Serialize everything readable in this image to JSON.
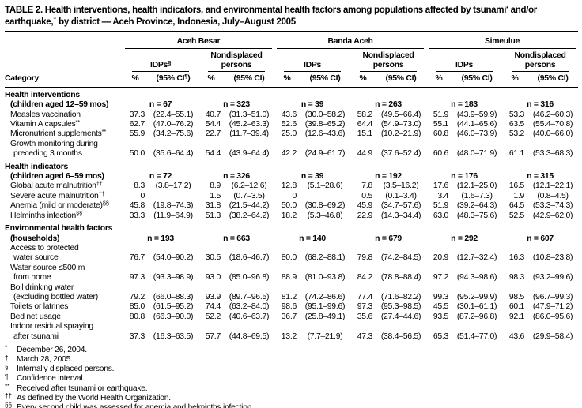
{
  "page": {
    "background": "#ffffff",
    "ink": "#000000"
  },
  "title": "TABLE 2. Health interventions, health indicators, and environmental health factors among populations affected by tsunami^{*} and/or earthquake,^{†} by district — Aceh Province, Indonesia, July–August 2005",
  "table": {
    "category_header": "Category",
    "groups": [
      "Aceh Besar",
      "Banda Aceh",
      "Simeulue"
    ],
    "subgroups": [
      "IDPs^{§}",
      "Nondisplaced persons",
      "IDPs",
      "Nondisplaced persons",
      "IDPs",
      "Nondisplaced persons"
    ],
    "measures": [
      "%",
      "(95% CI^{¶})",
      "%",
      "(95% CI)",
      "%",
      "(95% CI)",
      "%",
      "(95% CI)",
      "%",
      "(95% CI)",
      "%",
      "(95% CI)"
    ],
    "sections": [
      {
        "header": "Health interventions",
        "subheader": "(children aged 12–59 mos)",
        "n": [
          "n = 67",
          "n = 323",
          "n = 39",
          "n = 263",
          "n = 183",
          "n = 316"
        ],
        "rows": [
          {
            "label": [
              "Measles vaccination"
            ],
            "cells": [
              [
                "37.3",
                "(22.4–55.1)"
              ],
              [
                "40.7",
                "(31.3–51.0)"
              ],
              [
                "43.6",
                "(30.0–58.2)"
              ],
              [
                "58.2",
                "(49.5–66.4)"
              ],
              [
                "51.9",
                "(43.9–59.9)"
              ],
              [
                "53.3",
                "(46.2–60.3)"
              ]
            ]
          },
          {
            "label": [
              "Vitamin A capsules^{**}"
            ],
            "cells": [
              [
                "62.7",
                "(47.0–76.2)"
              ],
              [
                "54.4",
                "(45.2–63.3)"
              ],
              [
                "52.6",
                "(39.8–65.2)"
              ],
              [
                "64.4",
                "(54.9–73.0)"
              ],
              [
                "55.1",
                "(44.1–65.6)"
              ],
              [
                "63.5",
                "(55.4–70.8)"
              ]
            ]
          },
          {
            "label": [
              "Micronutrient supplements^{**}"
            ],
            "cells": [
              [
                "55.9",
                "(34.2–75.6)"
              ],
              [
                "22.7",
                "(11.7–39.4)"
              ],
              [
                "25.0",
                "(12.6–43.6)"
              ],
              [
                "15.1",
                "(10.2–21.9)"
              ],
              [
                "60.8",
                "(46.0–73.9)"
              ],
              [
                "53.2",
                "(40.0–66.0)"
              ]
            ]
          },
          {
            "label": [
              "Growth monitoring during",
              "preceding 3 months"
            ],
            "cells": [
              [
                "50.0",
                "(35.6–64.4)"
              ],
              [
                "54.4",
                "(43.9–64.4)"
              ],
              [
                "42.2",
                "(24.9–61.7)"
              ],
              [
                "44.9",
                "(37.6–52.4)"
              ],
              [
                "60.6",
                "(48.0–71.9)"
              ],
              [
                "61.1",
                "(53.3–68.3)"
              ]
            ]
          }
        ]
      },
      {
        "header": "Health indicators",
        "subheader": "(children aged 6–59 mos)",
        "n": [
          "n = 72",
          "n = 326",
          "n = 39",
          "n = 192",
          "n = 176",
          "n = 315"
        ],
        "rows": [
          {
            "label": [
              "Global acute malnutrition^{††}"
            ],
            "cells": [
              [
                "8.3",
                "(3.8–17.2)"
              ],
              [
                "8.9",
                "(6.2–12.6)"
              ],
              [
                "12.8",
                "(5.1–28.6)"
              ],
              [
                "7.8",
                "(3.5–16.2)"
              ],
              [
                "17.6",
                "(12.1–25.0)"
              ],
              [
                "16.5",
                "(12.1–22.1)"
              ]
            ]
          },
          {
            "label": [
              "Severe acute malnutrition^{††}"
            ],
            "cells": [
              [
                "0",
                ""
              ],
              [
                "1.5",
                "(0.7–3.5)"
              ],
              [
                "0",
                ""
              ],
              [
                "0.5",
                "(0.1–3.4)"
              ],
              [
                "3.4",
                "(1.6–7.3)"
              ],
              [
                "1.9",
                "(0.8–4.5)"
              ]
            ]
          },
          {
            "label": [
              "Anemia (mild or moderate)^{§§}"
            ],
            "cells": [
              [
                "45.8",
                "(19.8–74.3)"
              ],
              [
                "31.8",
                "(21.5–44.2)"
              ],
              [
                "50.0",
                "(30.8–69.2)"
              ],
              [
                "45.9",
                "(34.7–57.6)"
              ],
              [
                "51.9",
                "(39.2–64.3)"
              ],
              [
                "64.5",
                "(53.3–74.3)"
              ]
            ]
          },
          {
            "label": [
              "Helminths infection^{§§}"
            ],
            "cells": [
              [
                "33.3",
                "(11.9–64.9)"
              ],
              [
                "51.3",
                "(38.2–64.2)"
              ],
              [
                "18.2",
                "(5.3–46.8)"
              ],
              [
                "22.9",
                "(14.3–34.4)"
              ],
              [
                "63.0",
                "(48.3–75.6)"
              ],
              [
                "52.5",
                "(42.9–62.0)"
              ]
            ]
          }
        ]
      },
      {
        "header": "Environmental health factors",
        "subheader": "(households)",
        "n": [
          "n = 193",
          "n = 663",
          "n = 140",
          "n = 679",
          "n = 292",
          "n = 607"
        ],
        "rows": [
          {
            "label": [
              "Access to protected",
              "water source"
            ],
            "cells": [
              [
                "76.7",
                "(54.0–90.2)"
              ],
              [
                "30.5",
                "(18.6–46.7)"
              ],
              [
                "80.0",
                "(68.2–88.1)"
              ],
              [
                "79.8",
                "(74.2–84.5)"
              ],
              [
                "20.9",
                "(12.7–32.4)"
              ],
              [
                "16.3",
                "(10.8–23.8)"
              ]
            ]
          },
          {
            "label": [
              "Water source ≤500 m",
              "from home"
            ],
            "cells": [
              [
                "97.3",
                "(93.3–98.9)"
              ],
              [
                "93.0",
                "(85.0–96.8)"
              ],
              [
                "88.9",
                "(81.0–93.8)"
              ],
              [
                "84.2",
                "(78.8–88.4)"
              ],
              [
                "97.2",
                "(94.3–98.6)"
              ],
              [
                "98.3",
                "(93.2–99.6)"
              ]
            ]
          },
          {
            "label": [
              "Boil drinking water",
              "(excluding bottled water)"
            ],
            "cells": [
              [
                "79.2",
                "(66.0–88.3)"
              ],
              [
                "93.9",
                "(89.7–96.5)"
              ],
              [
                "81.2",
                "(74.2–86.6)"
              ],
              [
                "77.4",
                "(71.6–82.2)"
              ],
              [
                "99.3",
                "(95.2–99.9)"
              ],
              [
                "98.5",
                "(96.7–99.3)"
              ]
            ]
          },
          {
            "label": [
              "Toilets or latrines"
            ],
            "cells": [
              [
                "85.0",
                "(61.5–95.2)"
              ],
              [
                "74.4",
                "(63.2–84.0)"
              ],
              [
                "98.6",
                "(95.1–99.6)"
              ],
              [
                "97.3",
                "(95.3–98.5)"
              ],
              [
                "45.5",
                "(30.1–61.1)"
              ],
              [
                "60.1",
                "(47.9–71.2)"
              ]
            ]
          },
          {
            "label": [
              "Bed net usage"
            ],
            "cells": [
              [
                "80.8",
                "(66.3–90.0)"
              ],
              [
                "52.2",
                "(40.6–63.7)"
              ],
              [
                "36.7",
                "(25.8–49.1)"
              ],
              [
                "35.6",
                "(27.4–44.6)"
              ],
              [
                "93.5",
                "(87.2–96.8)"
              ],
              [
                "92.1",
                "(86.0–95.6)"
              ]
            ]
          },
          {
            "label": [
              "Indoor residual spraying",
              "after tsunami"
            ],
            "cells": [
              [
                "37.3",
                "(16.3–63.5)"
              ],
              [
                "57.7",
                "(44.8–69.5)"
              ],
              [
                "13.2",
                "(7.7–21.9)"
              ],
              [
                "47.3",
                "(38.4–56.5)"
              ],
              [
                "65.3",
                "(51.4–77.0)"
              ],
              [
                "43.6",
                "(29.9–58.4)"
              ]
            ]
          }
        ]
      }
    ]
  },
  "footnotes": [
    {
      "marker": "*",
      "text": "December 26, 2004."
    },
    {
      "marker": "†",
      "text": "March 28, 2005."
    },
    {
      "marker": "§",
      "text": "Internally displaced persons."
    },
    {
      "marker": "¶",
      "text": "Confidence interval."
    },
    {
      "marker": "**",
      "text": "Received after tsunami or earthquake."
    },
    {
      "marker": "††",
      "text": "As defined by the World Health Organization."
    },
    {
      "marker": "§§",
      "text": "Every second child was assessed for anemia and helminths infection."
    }
  ]
}
